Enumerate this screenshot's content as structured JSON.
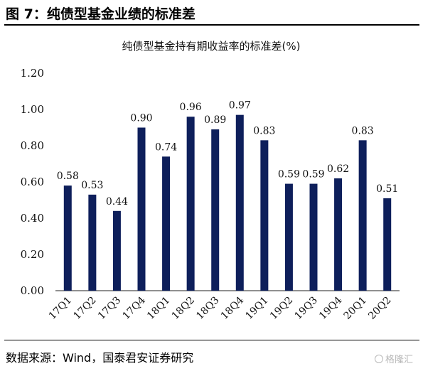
{
  "figure": {
    "title": "图 7：纯债型基金业绩的标准差",
    "source": "数据来源：Wind，国泰君安证券研究",
    "watermark": "格隆汇"
  },
  "chart_data": {
    "type": "bar",
    "title": "纯债型基金持有期收益率的标准差(%)",
    "categories": [
      "17Q1",
      "17Q2",
      "17Q3",
      "17Q4",
      "18Q1",
      "18Q2",
      "18Q3",
      "18Q4",
      "19Q1",
      "19Q2",
      "19Q3",
      "19Q4",
      "20Q1",
      "20Q2"
    ],
    "values": [
      0.58,
      0.53,
      0.44,
      0.9,
      0.74,
      0.96,
      0.89,
      0.97,
      0.83,
      0.59,
      0.59,
      0.62,
      0.83,
      0.51
    ],
    "data_labels": [
      "0.58",
      "0.53",
      "0.44",
      "0.90",
      "0.74",
      "0.96",
      "0.89",
      "0.97",
      "0.83",
      "0.59",
      "0.59",
      "0.62",
      "0.83",
      "0.51"
    ],
    "yticks": [
      "0.00",
      "0.20",
      "0.40",
      "0.60",
      "0.80",
      "1.00",
      "1.20"
    ],
    "ylim": [
      0,
      1.2
    ],
    "bar_color": "#0e1f5b",
    "grid": false,
    "legend": "none"
  }
}
